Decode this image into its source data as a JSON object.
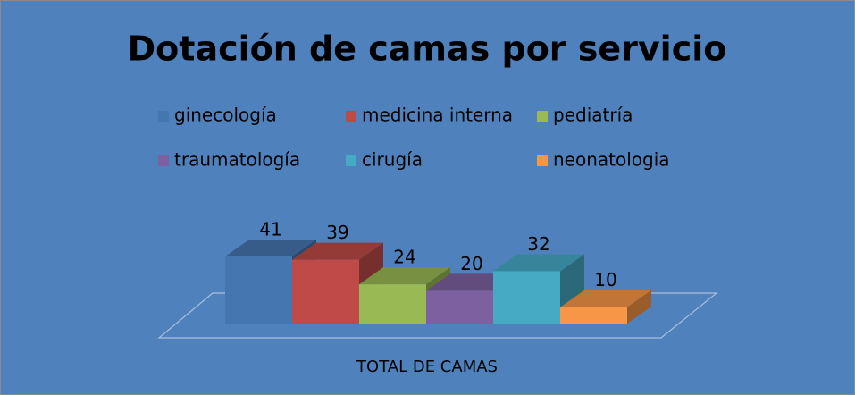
{
  "chart_data": {
    "type": "bar",
    "title": "Dotación de camas por servicio",
    "categories": [
      "TOTAL DE CAMAS"
    ],
    "series": [
      {
        "name": "ginecología",
        "color": "#4676b0",
        "values": [
          41
        ]
      },
      {
        "name": "medicina interna",
        "color": "#be4b48",
        "values": [
          39
        ]
      },
      {
        "name": "pediatría",
        "color": "#98b954",
        "values": [
          24
        ]
      },
      {
        "name": "traumatología",
        "color": "#7d60a0",
        "values": [
          20
        ]
      },
      {
        "name": "cirugía",
        "color": "#46aac5",
        "values": [
          32
        ]
      },
      {
        "name": "neonatologia",
        "color": "#f79646",
        "values": [
          10
        ]
      }
    ],
    "legend": "top"
  }
}
